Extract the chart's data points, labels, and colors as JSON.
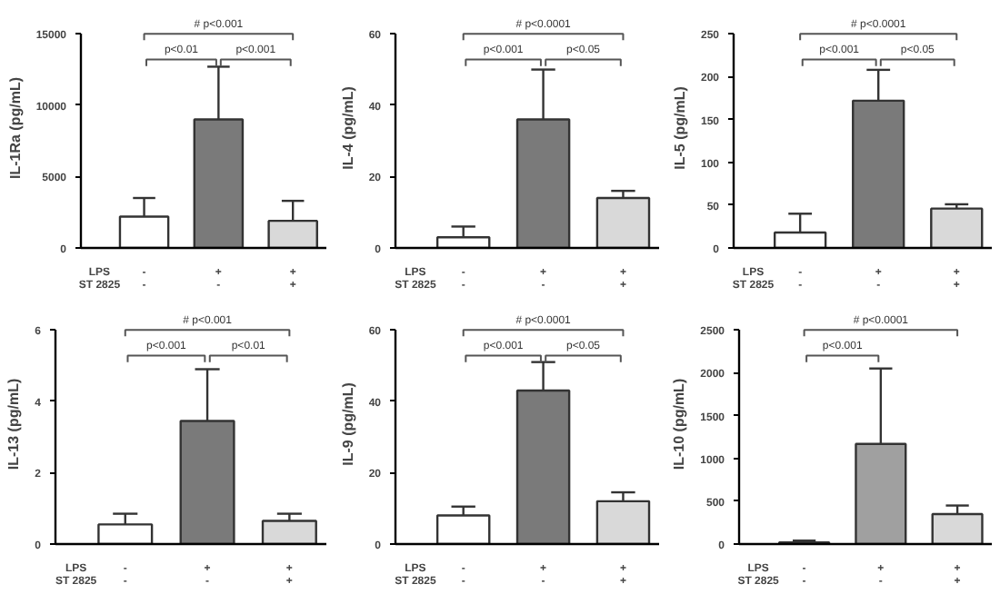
{
  "chart_data": [
    {
      "type": "bar",
      "ylabel": "IL-1Ra (pg/mL)",
      "categories": [
        "-\n-",
        "+\n-",
        "+\n+"
      ],
      "colors": [
        "#ffffff",
        "#7a7a7a",
        "#d9d9d9"
      ],
      "values": [
        2200,
        9000,
        1900
      ],
      "errors": [
        [
          2200,
          3500
        ],
        [
          9000,
          12700
        ],
        [
          1900,
          3300
        ]
      ],
      "ylim": [
        0,
        15000
      ],
      "yticks": [
        0,
        5000,
        10000,
        15000
      ],
      "grid": false,
      "annotations": [
        "p<0.01",
        "p<0.001",
        "# p<0.001",
        "LPS",
        "ST 2825"
      ]
    },
    {
      "type": "bar",
      "ylabel": "IL-4 (pg/mL)",
      "categories": [
        "-\n-",
        "+\n-",
        "+\n+"
      ],
      "colors": [
        "#ffffff",
        "#7a7a7a",
        "#d9d9d9"
      ],
      "values": [
        3,
        36,
        14
      ],
      "errors": [
        [
          3,
          6
        ],
        [
          36,
          50
        ],
        [
          14,
          16
        ]
      ],
      "ylim": [
        0,
        60
      ],
      "yticks": [
        0,
        20,
        40,
        60
      ],
      "grid": false,
      "annotations": [
        "p<0.001",
        "p<0.05",
        "# p<0.0001",
        "LPS",
        "ST 2825"
      ]
    },
    {
      "type": "bar",
      "ylabel": "IL-5 (pg/mL)",
      "categories": [
        "-\n-",
        "+\n-",
        "+\n+"
      ],
      "colors": [
        "#ffffff",
        "#7a7a7a",
        "#d9d9d9"
      ],
      "values": [
        18,
        172,
        46
      ],
      "errors": [
        [
          18,
          40
        ],
        [
          172,
          208
        ],
        [
          46,
          51
        ]
      ],
      "ylim": [
        0,
        250
      ],
      "yticks": [
        0,
        50,
        100,
        150,
        200,
        250
      ],
      "grid": false,
      "annotations": [
        "p<0.001",
        "p<0.05",
        "# p<0.0001",
        "LPS",
        "ST 2825"
      ]
    },
    {
      "type": "bar",
      "ylabel": "IL-13 (pg/mL)",
      "categories": [
        "-\n-",
        "+\n-",
        "+\n+"
      ],
      "colors": [
        "#ffffff",
        "#7a7a7a",
        "#d9d9d9"
      ],
      "values": [
        0.55,
        3.45,
        0.65
      ],
      "errors": [
        [
          0.55,
          0.85
        ],
        [
          3.45,
          4.9
        ],
        [
          0.65,
          0.85
        ]
      ],
      "ylim": [
        0,
        6
      ],
      "yticks": [
        0,
        2,
        4,
        6
      ],
      "grid": false,
      "annotations": [
        "p<0.001",
        "p<0.01",
        "# p<0.001",
        "LPS",
        "ST 2825"
      ]
    },
    {
      "type": "bar",
      "ylabel": "IL-9 (pg/mL)",
      "categories": [
        "-\n-",
        "+\n-",
        "+\n+"
      ],
      "colors": [
        "#ffffff",
        "#7a7a7a",
        "#d9d9d9"
      ],
      "values": [
        8,
        43,
        12
      ],
      "errors": [
        [
          8,
          10.5
        ],
        [
          43,
          51
        ],
        [
          12,
          14.5
        ]
      ],
      "ylim": [
        0,
        60
      ],
      "yticks": [
        0,
        20,
        40,
        60
      ],
      "grid": false,
      "annotations": [
        "p<0.001",
        "p<0.05",
        "# p<0.0001",
        "LPS",
        "ST 2825"
      ]
    },
    {
      "type": "bar",
      "ylabel": "IL-10 (pg/mL)",
      "categories": [
        "-\n-",
        "+\n-",
        "+\n+"
      ],
      "colors": [
        "#ffffff",
        "#a0a0a0",
        "#d9d9d9"
      ],
      "values": [
        20,
        1170,
        350
      ],
      "errors": [
        [
          20,
          40
        ],
        [
          1170,
          2050
        ],
        [
          350,
          450
        ]
      ],
      "ylim": [
        0,
        2500
      ],
      "yticks": [
        0,
        500,
        1000,
        1500,
        2000,
        2500
      ],
      "grid": false,
      "annotations": [
        "p<0.001",
        "# p<0.0001",
        "LPS",
        "ST 2825"
      ]
    }
  ]
}
